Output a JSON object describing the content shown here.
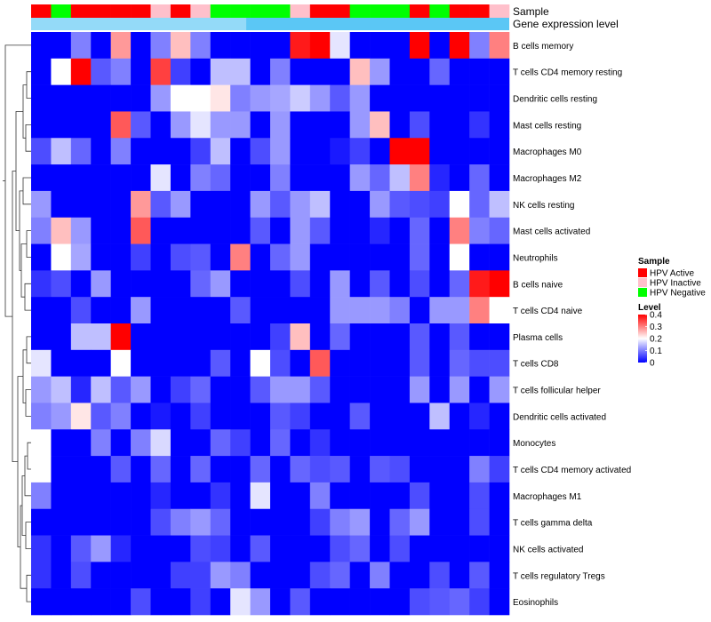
{
  "chart_data": {
    "type": "heatmap",
    "title": "",
    "annotation_labels": {
      "sample": "Sample",
      "gene_expression": "Gene expression level"
    },
    "sample_groups": [
      "Active",
      "Negative",
      "Active",
      "Active",
      "Active",
      "Active",
      "Inactive",
      "Active",
      "Inactive",
      "Negative",
      "Negative",
      "Negative",
      "Negative",
      "Inactive",
      "Active",
      "Active",
      "Negative",
      "Negative",
      "Negative",
      "Active",
      "Negative",
      "Active",
      "Active",
      "Inactive"
    ],
    "rows": [
      "B cells memory",
      "T cells CD4 memory resting",
      "Dendritic cells resting",
      "Mast cells resting",
      "Macrophages M0",
      "Macrophages M2",
      "NK cells resting",
      "Mast cells activated",
      "Neutrophils",
      "B cells naive",
      "T cells CD4 naive",
      "Plasma cells",
      "T cells CD8",
      "T cells follicular helper",
      "Dendritic cells activated",
      "Monocytes",
      "T cells CD4 memory activated",
      "Macrophages M1",
      "T cells gamma delta",
      "NK cells activated",
      "T cells regulatory  Tregs",
      "Eosinophils"
    ],
    "values": [
      [
        0,
        0,
        0.1,
        0,
        0.28,
        0,
        0.1,
        0.25,
        0.1,
        0,
        0,
        0,
        0,
        0.38,
        0.4,
        0.18,
        0,
        0,
        0,
        0.4,
        0,
        0.4,
        0.1,
        0.3
      ],
      [
        0,
        0.2,
        0.4,
        0.07,
        0.1,
        0,
        0.35,
        0.05,
        0,
        0.15,
        0.15,
        0,
        0.1,
        0,
        0,
        0,
        0.25,
        0.12,
        0,
        0,
        0.08,
        0,
        0,
        0
      ],
      [
        0,
        0,
        0,
        0,
        0,
        0,
        0.12,
        0.2,
        0.2,
        0.22,
        0.1,
        0.12,
        0.13,
        0.16,
        0.12,
        0.07,
        0.12,
        0,
        0,
        0,
        0,
        0,
        0,
        0
      ],
      [
        0,
        0,
        0,
        0,
        0.33,
        0.07,
        0,
        0.12,
        0.18,
        0.12,
        0.12,
        0,
        0.12,
        0,
        0,
        0,
        0.12,
        0.25,
        0,
        0.06,
        0,
        0,
        0.04,
        0
      ],
      [
        0.06,
        0.15,
        0.08,
        0,
        0.1,
        0,
        0,
        0,
        0.05,
        0.15,
        0,
        0.06,
        0.12,
        0,
        0,
        0.02,
        0.05,
        0,
        0.4,
        0.4,
        0,
        0,
        0,
        0
      ],
      [
        0,
        0,
        0,
        0,
        0,
        0,
        0.18,
        0,
        0.1,
        0.08,
        0,
        0,
        0.1,
        0,
        0,
        0,
        0.12,
        0.08,
        0.15,
        0.3,
        0.03,
        0,
        0.08,
        0
      ],
      [
        0.12,
        0,
        0,
        0,
        0,
        0.28,
        0.07,
        0.12,
        0,
        0,
        0,
        0.12,
        0.07,
        0.12,
        0.15,
        0,
        0,
        0.12,
        0.07,
        0.06,
        0.05,
        0.2,
        0.08,
        0.15
      ],
      [
        0.1,
        0.25,
        0.12,
        0,
        0,
        0.33,
        0,
        0,
        0,
        0,
        0,
        0.07,
        0,
        0.12,
        0.07,
        0,
        0,
        0.03,
        0,
        0.08,
        0,
        0.3,
        0.1,
        0.08
      ],
      [
        0,
        0.2,
        0.13,
        0,
        0,
        0.05,
        0,
        0.06,
        0.07,
        0,
        0.3,
        0,
        0.08,
        0.12,
        0,
        0,
        0,
        0,
        0,
        0.08,
        0,
        0.2,
        0,
        0
      ],
      [
        0.04,
        0.06,
        0,
        0.12,
        0,
        0,
        0,
        0,
        0.08,
        0.12,
        0,
        0,
        0,
        0.06,
        0,
        0.12,
        0,
        0.07,
        0,
        0.06,
        0,
        0.08,
        0.38,
        0.4
      ],
      [
        0,
        0,
        0.06,
        0,
        0,
        0.12,
        0,
        0,
        0,
        0,
        0.07,
        0,
        0,
        0,
        0,
        0.12,
        0.12,
        0.12,
        0.1,
        0,
        0.12,
        0.12,
        0.3,
        0.2
      ],
      [
        0,
        0,
        0.15,
        0.15,
        0.4,
        0,
        0,
        0,
        0,
        0,
        0,
        0,
        0.05,
        0.25,
        0,
        0.08,
        0,
        0,
        0,
        0.07,
        0,
        0.07,
        0,
        0
      ],
      [
        0.18,
        0,
        0,
        0,
        0.2,
        0,
        0,
        0,
        0,
        0.07,
        0,
        0.2,
        0.06,
        0,
        0.33,
        0,
        0,
        0,
        0,
        0.07,
        0,
        0.08,
        0.06,
        0.06
      ],
      [
        0.12,
        0.15,
        0.03,
        0.15,
        0.07,
        0.12,
        0,
        0.05,
        0.08,
        0,
        0,
        0.07,
        0.12,
        0.12,
        0.07,
        0,
        0,
        0,
        0,
        0.12,
        0,
        0.12,
        0,
        0.12
      ],
      [
        0.1,
        0.12,
        0.22,
        0.07,
        0.1,
        0,
        0.02,
        0,
        0.05,
        0,
        0,
        0,
        0.07,
        0.05,
        0,
        0,
        0.07,
        0,
        0,
        0,
        0.15,
        0,
        0.03,
        0
      ],
      [
        0.2,
        0,
        0,
        0.1,
        0,
        0.1,
        0.17,
        0,
        0,
        0.08,
        0.05,
        0,
        0.08,
        0,
        0.04,
        0,
        0,
        0,
        0,
        0,
        0,
        0,
        0,
        0
      ],
      [
        0.2,
        0,
        0,
        0,
        0.07,
        0,
        0.08,
        0,
        0.08,
        0,
        0,
        0.08,
        0,
        0.08,
        0.06,
        0.07,
        0,
        0.07,
        0.06,
        0,
        0,
        0,
        0.1,
        0.05
      ],
      [
        0.1,
        0,
        0,
        0,
        0,
        0,
        0.03,
        0,
        0,
        0.04,
        0,
        0.18,
        0,
        0,
        0.1,
        0,
        0,
        0,
        0,
        0.06,
        0,
        0,
        0.06,
        0
      ],
      [
        0,
        0,
        0,
        0,
        0,
        0,
        0.06,
        0.1,
        0.12,
        0.08,
        0,
        0,
        0,
        0,
        0.05,
        0.1,
        0.12,
        0,
        0.08,
        0.12,
        0,
        0,
        0.06,
        0
      ],
      [
        0.04,
        0,
        0.07,
        0.12,
        0.03,
        0,
        0,
        0,
        0.06,
        0.05,
        0,
        0.07,
        0,
        0,
        0,
        0.06,
        0.08,
        0,
        0.06,
        0,
        0,
        0,
        0,
        0
      ],
      [
        0.04,
        0,
        0.06,
        0,
        0,
        0,
        0,
        0.05,
        0.05,
        0.12,
        0.1,
        0,
        0,
        0,
        0.06,
        0.08,
        0,
        0.1,
        0,
        0,
        0.06,
        0,
        0.07,
        0
      ],
      [
        0,
        0,
        0,
        0,
        0,
        0.06,
        0,
        0,
        0.05,
        0,
        0.18,
        0.12,
        0,
        0.07,
        0,
        0,
        0,
        0,
        0,
        0.06,
        0.07,
        0.08,
        0.05,
        0
      ]
    ],
    "legend": {
      "sample_title": "Sample",
      "sample_entries": [
        {
          "key": "Active",
          "label": "HPV Active",
          "color": "#ff0000"
        },
        {
          "key": "Inactive",
          "label": "HPV Inactive",
          "color": "#ffc0cb"
        },
        {
          "key": "Negative",
          "label": "HPV Negative",
          "color": "#00ff00"
        }
      ],
      "level_title": "Level",
      "level_ticks": [
        0,
        0.1,
        0.2,
        0.3,
        0.4
      ]
    },
    "color_scale": {
      "low": "#0000ff",
      "mid": "#ffffff",
      "high": "#ff0000",
      "min": 0,
      "mid_value": 0.2,
      "max": 0.4
    },
    "gene_expression_bar_color": "#5bc7f5"
  }
}
